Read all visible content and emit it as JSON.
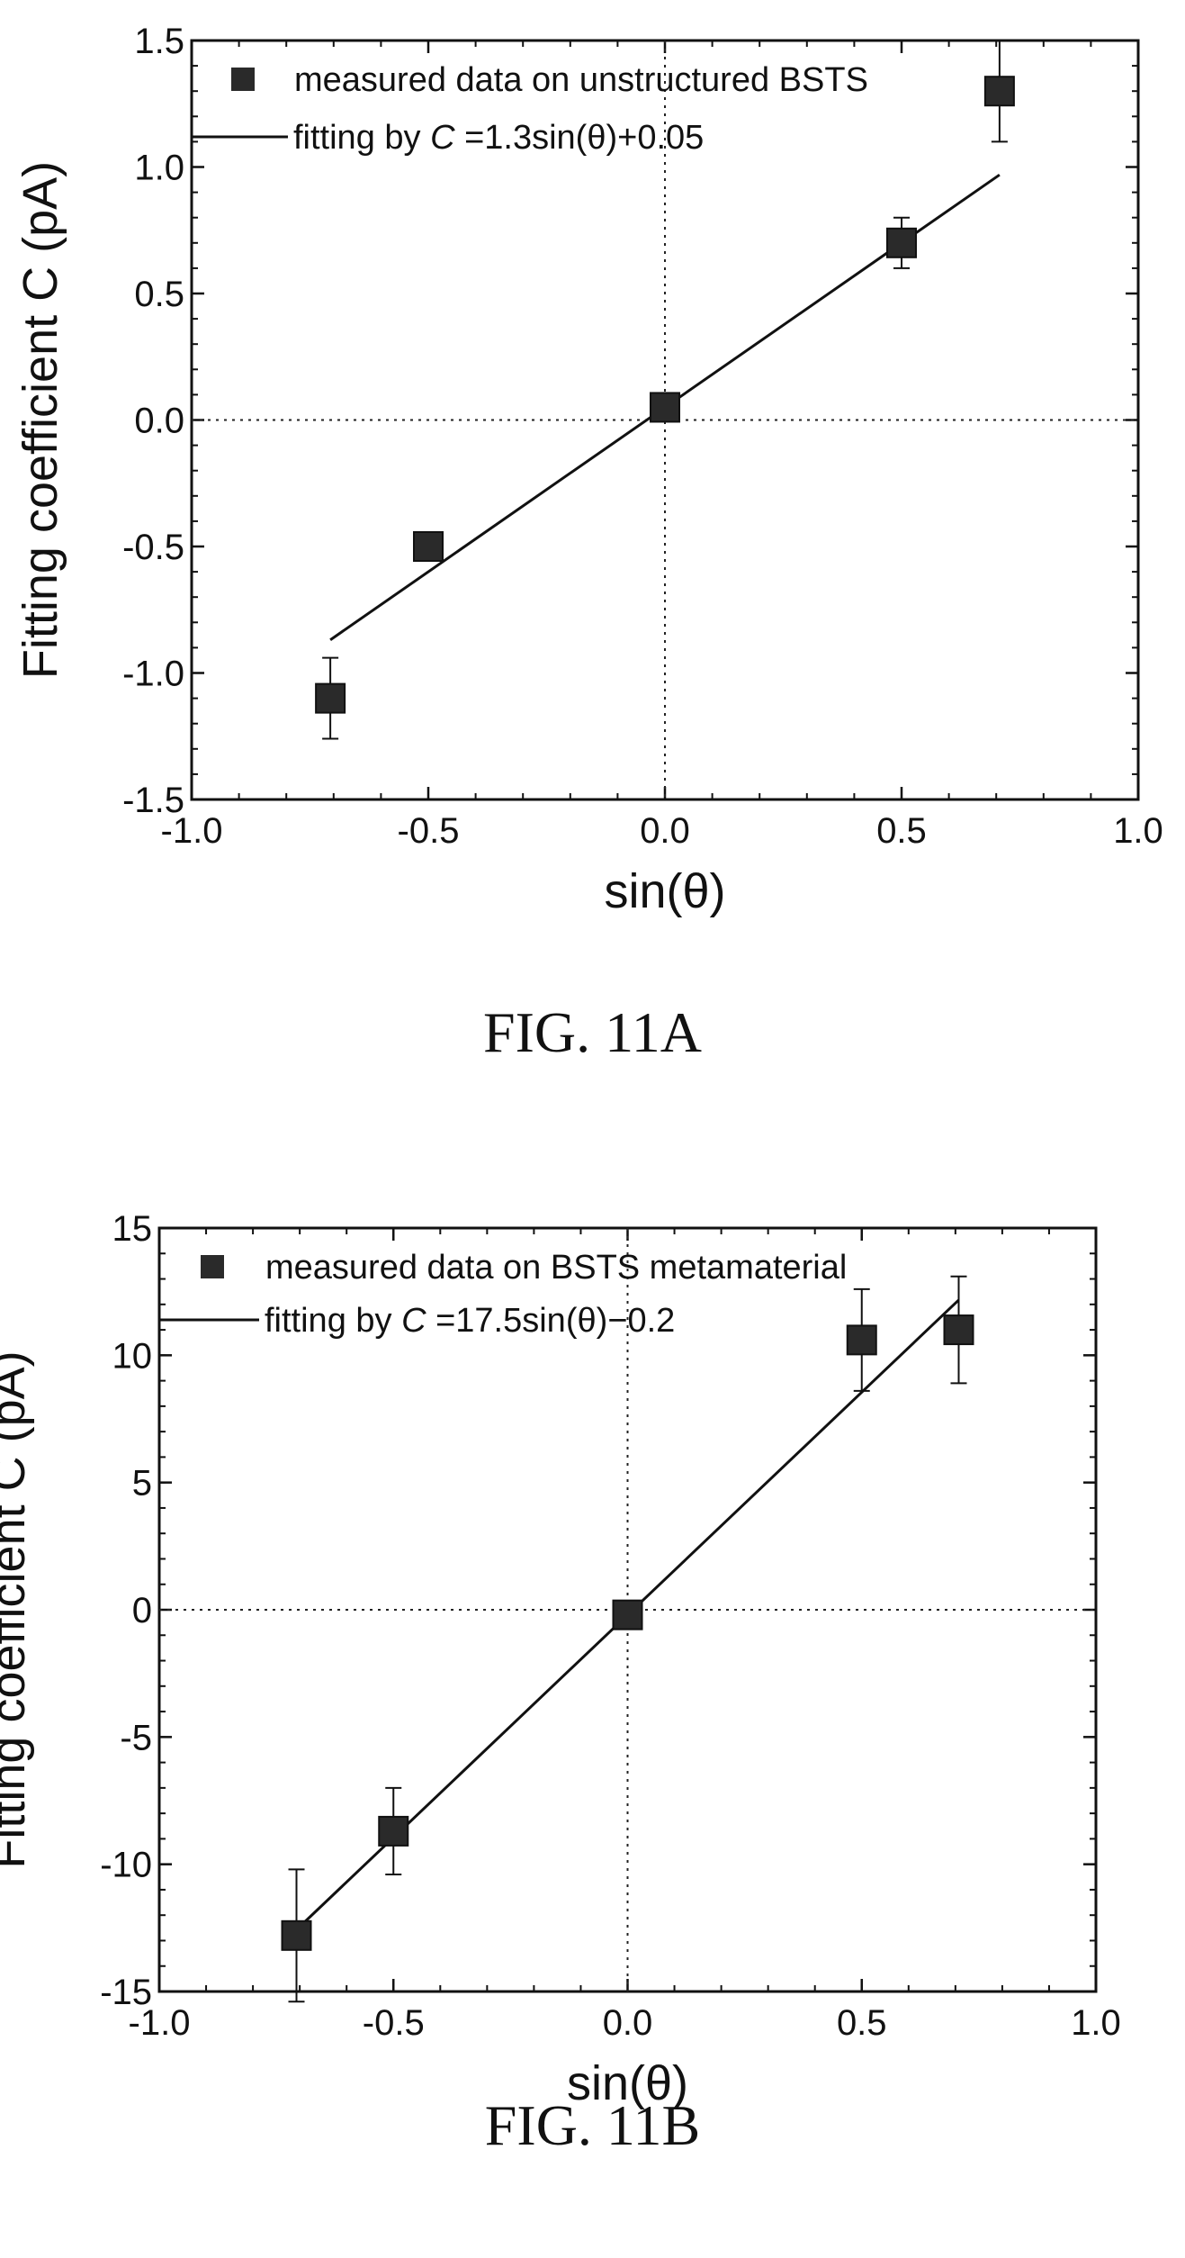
{
  "figures": [
    {
      "caption": "FIG. 11A"
    },
    {
      "caption": "FIG. 11B"
    }
  ],
  "chart_data": [
    {
      "type": "scatter",
      "xlabel": "sin(θ)",
      "ylabel": "Fitting coefficient C (pA)",
      "xlim": [
        -1.0,
        1.0
      ],
      "ylim": [
        -1.5,
        1.5
      ],
      "xticks": [
        -1.0,
        -0.5,
        0.0,
        0.5,
        1.0
      ],
      "xtick_labels": [
        "-1.0",
        "-0.5",
        "0.0",
        "0.5",
        "1.0"
      ],
      "yticks": [
        -1.5,
        -1.0,
        -0.5,
        0.0,
        0.5,
        1.0,
        1.5
      ],
      "ytick_labels": [
        "-1.5",
        "-1.0",
        "-0.5",
        "0.0",
        "0.5",
        "1.0",
        "1.5"
      ],
      "legend_position": "top-left",
      "reference_lines": {
        "x": 0,
        "y": 0,
        "style": "dotted"
      },
      "series": [
        {
          "name": "measured data on unstructured BSTS",
          "kind": "points",
          "marker": "square",
          "x": [
            -0.707,
            -0.5,
            0.0,
            0.5,
            0.707
          ],
          "y": [
            -1.1,
            -0.5,
            0.05,
            0.7,
            1.3
          ],
          "error": [
            0.16,
            0.0,
            0.0,
            0.1,
            0.2
          ]
        },
        {
          "name_prefix": "fitting by ",
          "name_var": "C",
          "name_suffix": " =1.3sin(θ)+0.05",
          "kind": "line",
          "slope": 1.3,
          "intercept": 0.05,
          "x_range": [
            -0.707,
            0.707
          ]
        }
      ]
    },
    {
      "type": "scatter",
      "xlabel": "sin(θ)",
      "ylabel": "Fitting coefficient C (pA)",
      "xlim": [
        -1.0,
        1.0
      ],
      "ylim": [
        -15,
        15
      ],
      "xticks": [
        -1.0,
        -0.5,
        0.0,
        0.5,
        1.0
      ],
      "xtick_labels": [
        "-1.0",
        "-0.5",
        "0.0",
        "0.5",
        "1.0"
      ],
      "yticks": [
        -15,
        -10,
        -5,
        0,
        5,
        10,
        15
      ],
      "ytick_labels": [
        "-15",
        "-10",
        "-5",
        "0",
        "5",
        "10",
        "15"
      ],
      "legend_position": "top-left",
      "reference_lines": {
        "x": 0,
        "y": 0,
        "style": "dotted"
      },
      "series": [
        {
          "name": "measured data on BSTS metamaterial",
          "kind": "points",
          "marker": "square",
          "x": [
            -0.707,
            -0.5,
            0.0,
            0.5,
            0.707
          ],
          "y": [
            -12.8,
            -8.7,
            -0.2,
            10.6,
            11.0
          ],
          "error": [
            2.6,
            1.7,
            0.0,
            2.0,
            2.1
          ]
        },
        {
          "name_prefix": "fitting by ",
          "name_var": "C",
          "name_suffix": " =17.5sin(θ)−0.2",
          "kind": "line",
          "slope": 17.5,
          "intercept": -0.2,
          "x_range": [
            -0.707,
            0.707
          ]
        }
      ]
    }
  ]
}
